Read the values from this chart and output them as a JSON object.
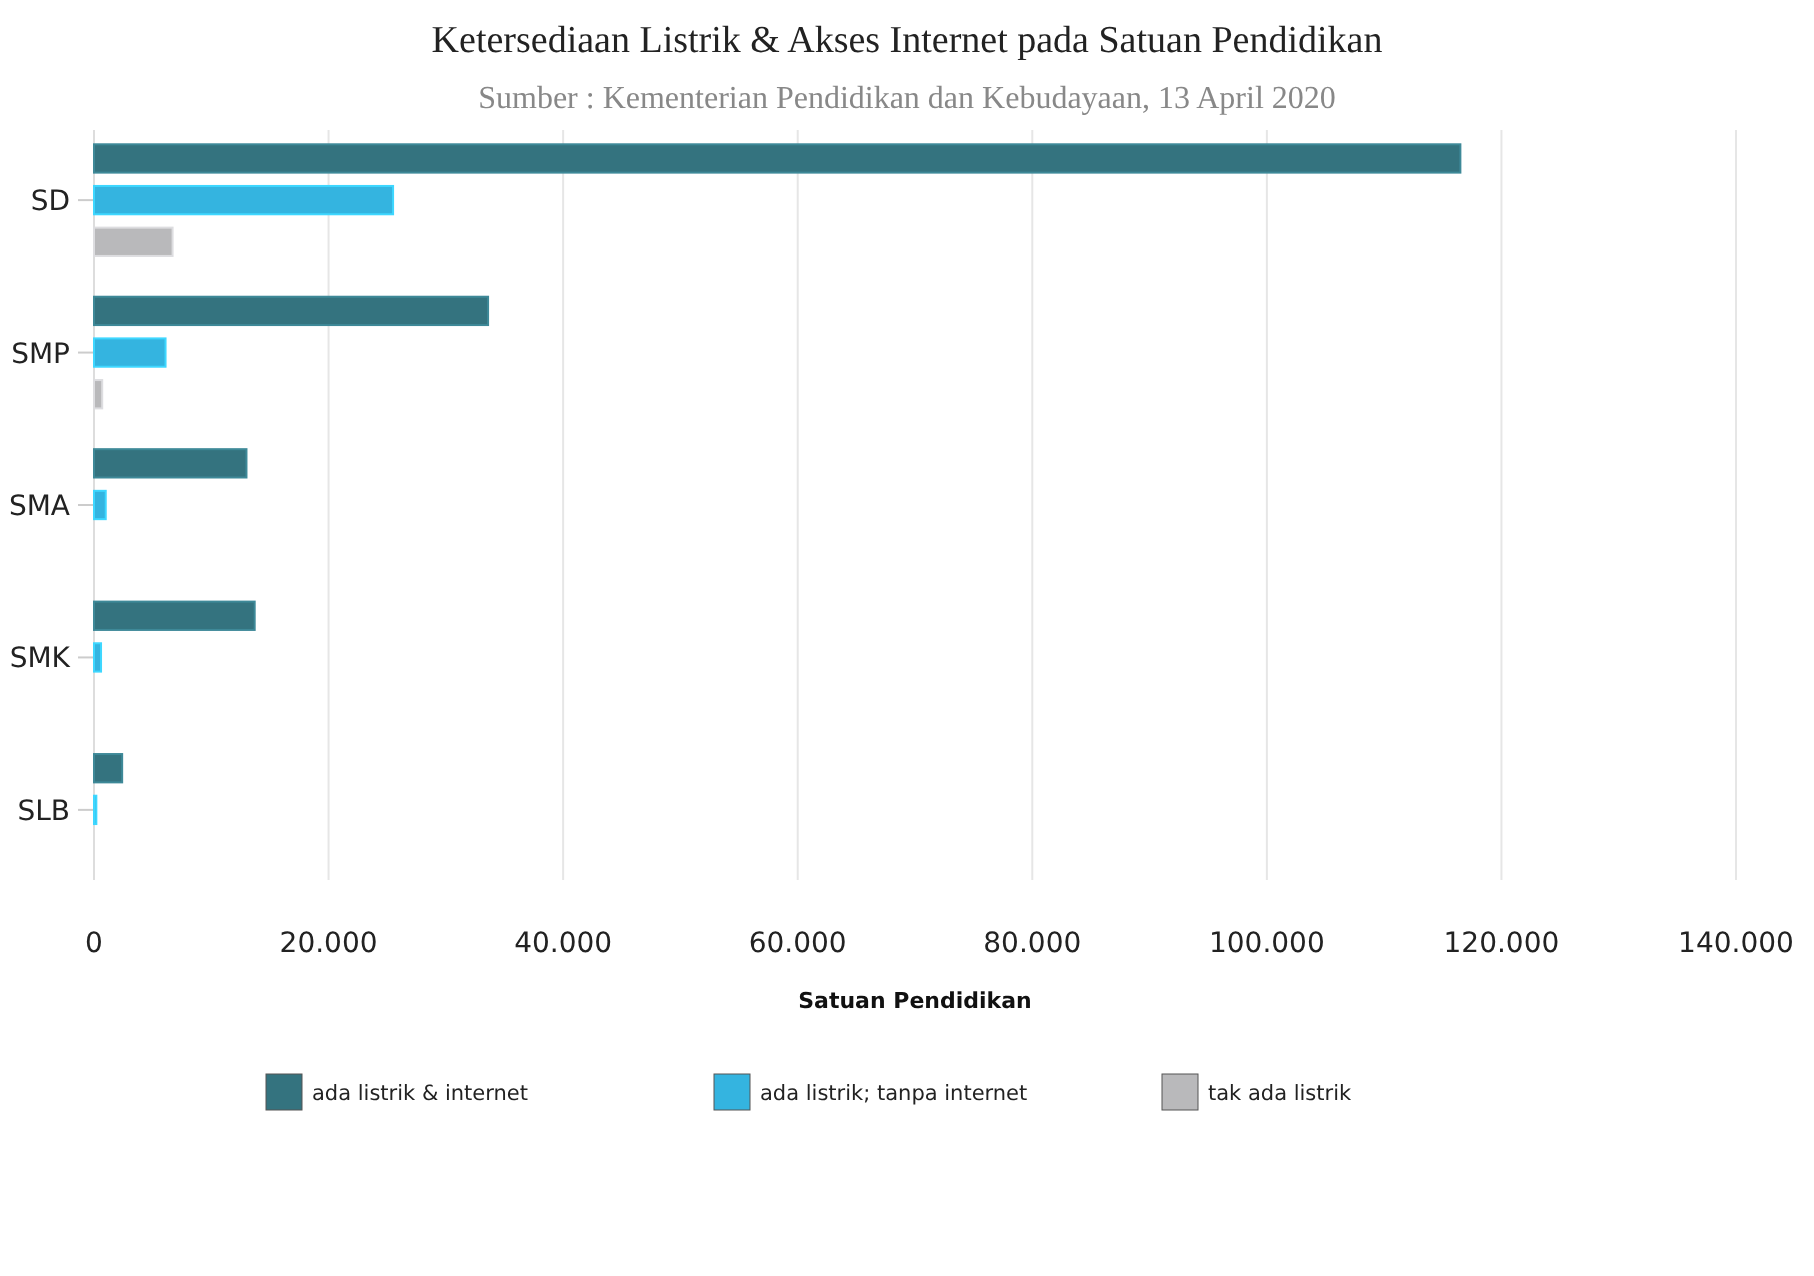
{
  "chart_data": {
    "type": "bar",
    "orientation": "horizontal",
    "title": "Ketersediaan Listrik & Akses Internet pada Satuan Pendidikan",
    "subtitle": "Sumber : Kementerian Pendidikan dan Kebudayaan, 13 April 2020",
    "xlabel": "Satuan Pendidikan",
    "categories": [
      "SD",
      "SMP",
      "SMA",
      "SMK",
      "SLB"
    ],
    "series": [
      {
        "name": "ada listrik & internet",
        "color": "#34737f",
        "values": [
          116500,
          33600,
          13000,
          13700,
          2400
        ]
      },
      {
        "name": "ada listrik; tanpa internet",
        "color": "#34b4e0",
        "values": [
          25500,
          6100,
          1000,
          600,
          200
        ]
      },
      {
        "name": "tak ada listrik",
        "color": "#b9b9bb",
        "values": [
          6700,
          700,
          0,
          0,
          0
        ]
      }
    ],
    "xlim": [
      0,
      140000
    ],
    "xticks": [
      0,
      {
        "value": 20000,
        "label": "20.000"
      },
      {
        "value": 40000,
        "label": "40.000"
      },
      {
        "value": 60000,
        "label": "60.000"
      },
      {
        "value": 80000,
        "label": "80.000"
      },
      {
        "value": 100000,
        "label": "100.000"
      },
      {
        "value": 120000,
        "label": "120.000"
      },
      {
        "value": 140000,
        "label": "140.000"
      }
    ],
    "grid": "x",
    "legend": "bottom"
  }
}
